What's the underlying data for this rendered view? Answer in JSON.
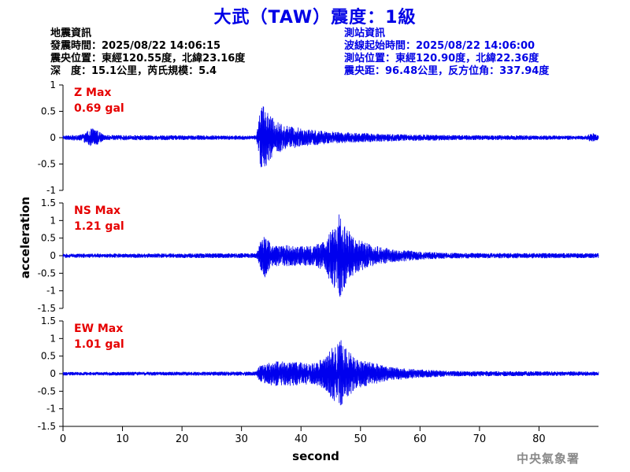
{
  "title": "大武（TAW）震度：1級",
  "quake_info": {
    "heading": "地震資訊",
    "origin_time": "發震時間：2025/08/22 14:06:15",
    "epicenter": "震央位置：東經120.55度，北緯23.16度",
    "depth_magnitude": "深　度：15.1公里，芮氏規模：5.4"
  },
  "station_info": {
    "heading": "測站資訊",
    "wave_start": "波線起始時間：2025/08/22 14:06:00",
    "location": "測站位置：東經120.90度，北緯22.36度",
    "distance_azimuth": "震央距：96.48公里，反方位角：337.94度"
  },
  "ylabel": "acceleration",
  "xlabel": "second",
  "agency": "中央氣象署",
  "colors": {
    "trace": "#0000ee",
    "title": "#0000e6",
    "max_label": "#e60000",
    "station_info": "#0000e6"
  },
  "chart_data": {
    "type": "line",
    "x_range": [
      0,
      90
    ],
    "x_ticks": [
      0,
      10,
      20,
      30,
      40,
      50,
      60,
      70,
      80
    ],
    "x_tick_labels": [
      "0",
      "10",
      "20",
      "30",
      "40",
      "50",
      "60",
      "70",
      "80"
    ],
    "grid": false,
    "panels": [
      {
        "component": "Z",
        "max_label": "Z Max",
        "max_value": "0.69 gal",
        "ylim": [
          -1,
          1
        ],
        "y_ticks": [
          1,
          0.5,
          0,
          -0.5,
          -1
        ],
        "y_tick_labels": [
          "1",
          "0.5",
          "0",
          "-0.5",
          "-1"
        ],
        "envelope": [
          [
            0,
            0.04
          ],
          [
            3,
            0.06
          ],
          [
            4,
            0.12
          ],
          [
            5,
            0.19
          ],
          [
            6,
            0.12
          ],
          [
            7,
            0.05
          ],
          [
            32.5,
            0.04
          ],
          [
            33,
            0.5
          ],
          [
            33.5,
            0.69
          ],
          [
            34.5,
            0.45
          ],
          [
            36,
            0.3
          ],
          [
            38,
            0.22
          ],
          [
            42,
            0.15
          ],
          [
            46,
            0.11
          ],
          [
            50,
            0.09
          ],
          [
            55,
            0.07
          ],
          [
            65,
            0.05
          ],
          [
            88,
            0.04
          ],
          [
            89,
            0.1
          ],
          [
            90,
            0.04
          ]
        ]
      },
      {
        "component": "NS",
        "max_label": "NS Max",
        "max_value": "1.21 gal",
        "ylim": [
          -1.5,
          1.5
        ],
        "y_ticks": [
          1.5,
          1,
          0.5,
          0,
          -0.5,
          -1,
          -1.5
        ],
        "y_tick_labels": [
          "1.5",
          "1",
          "0.5",
          "0",
          "-0.5",
          "-1",
          "-1.5"
        ],
        "envelope": [
          [
            0,
            0.06
          ],
          [
            32.5,
            0.07
          ],
          [
            33,
            0.35
          ],
          [
            34,
            0.65
          ],
          [
            35,
            0.3
          ],
          [
            38,
            0.3
          ],
          [
            42,
            0.28
          ],
          [
            44,
            0.45
          ],
          [
            45.5,
            0.9
          ],
          [
            46.5,
            1.21
          ],
          [
            47.5,
            0.85
          ],
          [
            49,
            0.5
          ],
          [
            52,
            0.3
          ],
          [
            55,
            0.2
          ],
          [
            60,
            0.12
          ],
          [
            65,
            0.08
          ],
          [
            90,
            0.07
          ]
        ]
      },
      {
        "component": "EW",
        "max_label": "EW Max",
        "max_value": "1.01 gal",
        "ylim": [
          -1.5,
          1.5
        ],
        "y_ticks": [
          1.5,
          1,
          0.5,
          0,
          -0.5,
          -1,
          -1.5
        ],
        "y_tick_labels": [
          "1.5",
          "1",
          "0.5",
          "0",
          "-0.5",
          "-1",
          "-1.5"
        ],
        "envelope": [
          [
            0,
            0.05
          ],
          [
            32.5,
            0.06
          ],
          [
            33,
            0.22
          ],
          [
            35,
            0.35
          ],
          [
            38,
            0.35
          ],
          [
            42,
            0.3
          ],
          [
            44,
            0.45
          ],
          [
            45.5,
            0.8
          ],
          [
            46.5,
            1.01
          ],
          [
            47.5,
            0.8
          ],
          [
            49,
            0.45
          ],
          [
            52,
            0.32
          ],
          [
            55,
            0.2
          ],
          [
            60,
            0.12
          ],
          [
            65,
            0.08
          ],
          [
            90,
            0.06
          ]
        ]
      }
    ]
  }
}
